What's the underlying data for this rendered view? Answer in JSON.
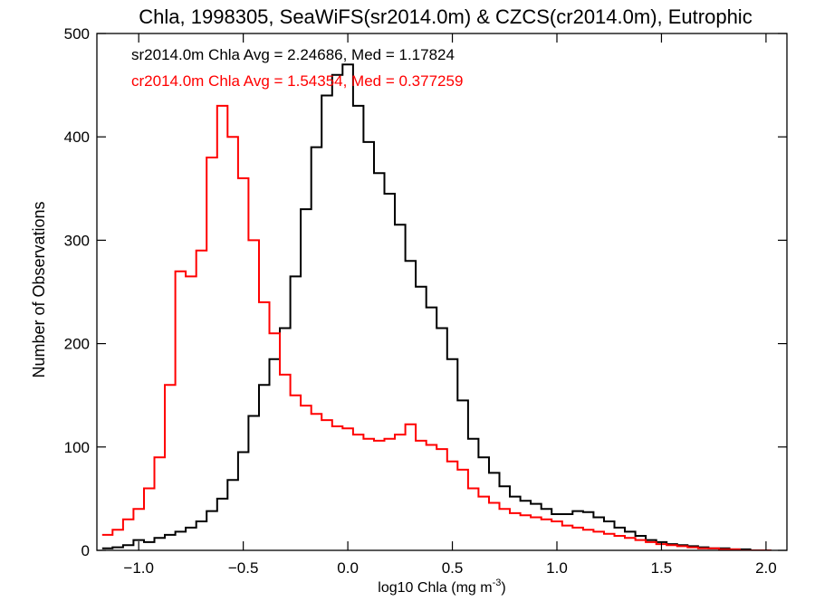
{
  "chart_data": {
    "type": "step",
    "title": "Chla, 1998305, SeaWiFS(sr2014.0m) & CZCS(cr2014.0m), Eutrophic",
    "xlabel": "log10 Chla (mg m",
    "xlabel_sup": "-3",
    "xlabel_end": ")",
    "ylabel": "Number of Observations",
    "xlim": [
      -1.2,
      2.1
    ],
    "ylim": [
      0,
      500
    ],
    "xticks": [
      -1.0,
      -0.5,
      0.0,
      0.5,
      1.0,
      1.5,
      2.0
    ],
    "xtick_labels": [
      "−1.0",
      "−0.5",
      "0.0",
      "0.5",
      "1.0",
      "1.5",
      "2.0"
    ],
    "yticks": [
      0,
      100,
      200,
      300,
      400,
      500
    ],
    "ytick_labels": [
      "0",
      "100",
      "200",
      "300",
      "400",
      "500"
    ],
    "bin_width": 0.05,
    "annotations": [
      {
        "text": "sr2014.0m Chla Avg = 2.24686, Med = 1.17824",
        "color": "#000000"
      },
      {
        "text": "cr2014.0m Chla Avg = 1.54354, Med = 0.377259",
        "color": "#ff0000"
      }
    ],
    "series": [
      {
        "color": "#000000",
        "x": [
          -1.15,
          -1.1,
          -1.05,
          -1.0,
          -0.95,
          -0.9,
          -0.85,
          -0.8,
          -0.75,
          -0.7,
          -0.65,
          -0.6,
          -0.55,
          -0.5,
          -0.45,
          -0.4,
          -0.35,
          -0.3,
          -0.25,
          -0.2,
          -0.15,
          -0.1,
          -0.05,
          0.0,
          0.05,
          0.1,
          0.15,
          0.2,
          0.25,
          0.3,
          0.35,
          0.4,
          0.45,
          0.5,
          0.55,
          0.6,
          0.65,
          0.7,
          0.75,
          0.8,
          0.85,
          0.9,
          0.95,
          1.0,
          1.05,
          1.1,
          1.15,
          1.2,
          1.25,
          1.3,
          1.35,
          1.4,
          1.45,
          1.5,
          1.55,
          1.6,
          1.65,
          1.7,
          1.75,
          1.8,
          1.85,
          1.9,
          1.95,
          2.0
        ],
        "y": [
          2,
          3,
          5,
          10,
          8,
          12,
          15,
          18,
          22,
          28,
          38,
          50,
          68,
          95,
          130,
          160,
          185,
          215,
          265,
          330,
          390,
          440,
          460,
          470,
          430,
          395,
          365,
          345,
          315,
          280,
          255,
          235,
          215,
          185,
          145,
          108,
          90,
          75,
          62,
          52,
          48,
          45,
          40,
          35,
          35,
          38,
          37,
          32,
          28,
          22,
          18,
          14,
          10,
          8,
          6,
          5,
          4,
          3,
          2,
          2,
          1,
          1,
          0,
          0
        ]
      },
      {
        "color": "#ff0000",
        "x": [
          -1.15,
          -1.1,
          -1.05,
          -1.0,
          -0.95,
          -0.9,
          -0.85,
          -0.8,
          -0.75,
          -0.7,
          -0.65,
          -0.6,
          -0.55,
          -0.5,
          -0.45,
          -0.4,
          -0.35,
          -0.3,
          -0.25,
          -0.2,
          -0.15,
          -0.1,
          -0.05,
          0.0,
          0.05,
          0.1,
          0.15,
          0.2,
          0.25,
          0.3,
          0.35,
          0.4,
          0.45,
          0.5,
          0.55,
          0.6,
          0.65,
          0.7,
          0.75,
          0.8,
          0.85,
          0.9,
          0.95,
          1.0,
          1.05,
          1.1,
          1.15,
          1.2,
          1.25,
          1.3,
          1.35,
          1.4,
          1.45,
          1.5,
          1.55,
          1.6,
          1.65,
          1.7,
          1.75,
          1.8,
          1.85,
          1.9,
          1.95,
          2.0
        ],
        "y": [
          15,
          20,
          30,
          40,
          60,
          90,
          160,
          270,
          265,
          290,
          380,
          430,
          400,
          360,
          300,
          240,
          210,
          170,
          150,
          140,
          132,
          126,
          120,
          118,
          112,
          108,
          106,
          108,
          112,
          122,
          106,
          102,
          98,
          86,
          78,
          60,
          52,
          46,
          40,
          36,
          34,
          32,
          30,
          28,
          24,
          22,
          20,
          18,
          16,
          14,
          12,
          10,
          8,
          6,
          5,
          4,
          3,
          2,
          2,
          1,
          1,
          0,
          0,
          0
        ]
      }
    ]
  }
}
